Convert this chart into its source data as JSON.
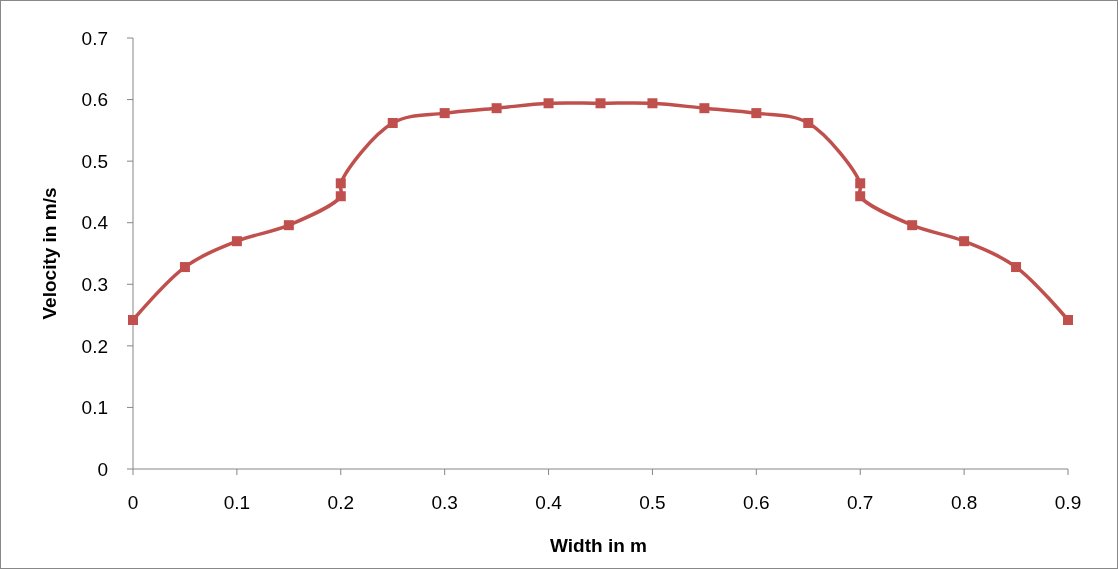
{
  "chart_data": {
    "type": "line",
    "xlabel": "Width in m",
    "ylabel": "Velocity in m/s",
    "x": [
      0,
      0.05,
      0.1,
      0.15,
      0.2,
      0.2,
      0.25,
      0.3,
      0.35,
      0.4,
      0.45,
      0.5,
      0.55,
      0.6,
      0.65,
      0.7,
      0.7,
      0.75,
      0.8,
      0.85,
      0.9
    ],
    "series": [
      {
        "color": "#c0504d",
        "values": [
          0.242,
          0.328,
          0.37,
          0.396,
          0.443,
          0.464,
          0.562,
          0.578,
          0.586,
          0.594,
          0.594,
          0.594,
          0.586,
          0.578,
          0.562,
          0.464,
          0.443,
          0.396,
          0.37,
          0.328,
          0.242
        ]
      }
    ],
    "xlim": [
      0,
      0.9
    ],
    "xticks": [
      0,
      0.1,
      0.2,
      0.3,
      0.4,
      0.5,
      0.6,
      0.7,
      0.8,
      0.9
    ],
    "ylim": [
      0,
      0.7
    ],
    "yticks": [
      0,
      0.1,
      0.2,
      0.3,
      0.4,
      0.5,
      0.6,
      0.7
    ],
    "marker": "square",
    "line_style": "solid"
  }
}
